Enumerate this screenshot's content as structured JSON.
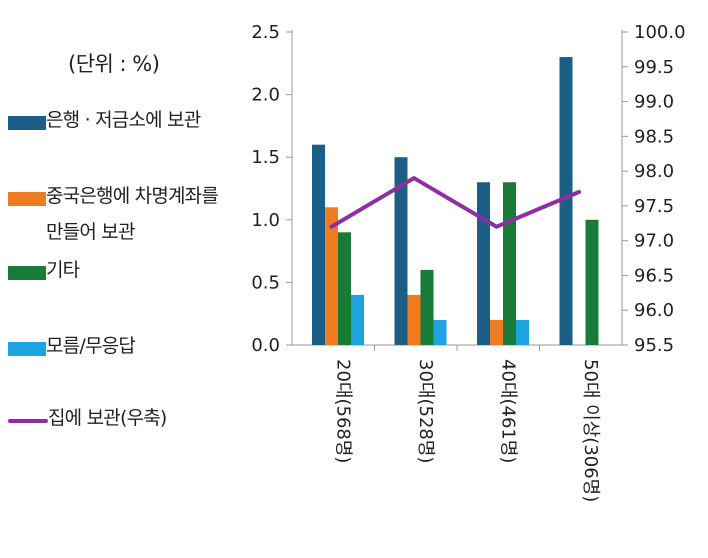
{
  "chart_data": {
    "type": "bar",
    "unit_label": "(단위 : %)",
    "categories": [
      "20대(568명)",
      "30대(528명)",
      "40대(461명)",
      "50대 이상(306명)"
    ],
    "series": [
      {
        "name": "은행 · 저금소에 보관",
        "color": "#1c5f86",
        "axis": "left",
        "values": [
          1.6,
          1.5,
          1.3,
          2.3
        ]
      },
      {
        "name": "중국은행에 차명계좌를\n만들어 보관",
        "color": "#f07c22",
        "axis": "left",
        "values": [
          1.1,
          0.4,
          0.2,
          null
        ]
      },
      {
        "name": "기타",
        "color": "#1a7a37",
        "axis": "left",
        "values": [
          0.9,
          0.6,
          1.3,
          1.0
        ]
      },
      {
        "name": "모름/무응답",
        "color": "#1fa3e0",
        "axis": "left",
        "values": [
          0.4,
          0.2,
          0.2,
          null
        ]
      },
      {
        "name": "집에 보관(우축)",
        "color": "#8e2fa0",
        "axis": "right",
        "type": "line",
        "values": [
          97.2,
          97.9,
          97.2,
          97.7
        ]
      }
    ],
    "left_axis": {
      "ylim": [
        0,
        2.5
      ],
      "ticks": [
        "0.0",
        "0.5",
        "1.0",
        "1.5",
        "2.0",
        "2.5"
      ]
    },
    "right_axis": {
      "ylim": [
        95.5,
        100.0
      ],
      "ticks": [
        "95.5",
        "96.0",
        "96.5",
        "97.0",
        "97.5",
        "98.0",
        "98.5",
        "99.0",
        "99.5",
        "100.0"
      ]
    },
    "grid": false,
    "legend_position": "left"
  }
}
